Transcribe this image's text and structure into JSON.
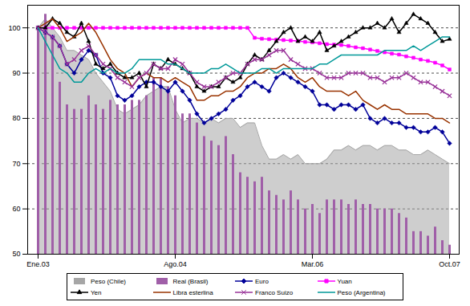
{
  "chart_data": {
    "type": "line",
    "categories": [
      "Ene.03",
      null,
      null,
      null,
      null,
      null,
      null,
      null,
      null,
      null,
      null,
      null,
      null,
      null,
      null,
      null,
      null,
      null,
      null,
      "Ago.04",
      null,
      null,
      null,
      null,
      null,
      null,
      null,
      null,
      null,
      null,
      null,
      null,
      null,
      null,
      null,
      null,
      null,
      null,
      "Mar.06",
      null,
      null,
      null,
      null,
      null,
      null,
      null,
      null,
      null,
      null,
      null,
      null,
      null,
      null,
      null,
      null,
      null,
      null,
      "Oct.07"
    ],
    "ylim": [
      50,
      105
    ],
    "yticks": [
      50,
      60,
      70,
      80,
      90,
      100
    ],
    "grid": true,
    "legend": "bottom",
    "series": [
      {
        "name": "Peso (Chile)",
        "type": "area",
        "color": "#a6a6a6",
        "values": [
          100,
          102,
          100,
          98,
          95,
          95,
          94,
          93,
          90,
          88,
          86,
          82,
          81,
          82,
          83,
          85,
          86,
          87,
          87,
          82,
          79,
          80,
          80,
          79,
          80,
          79,
          80,
          80,
          78,
          79,
          79,
          74,
          71,
          71,
          72,
          71,
          72,
          70,
          70,
          70,
          71,
          73,
          73,
          74,
          73,
          74,
          74,
          73,
          74,
          74,
          73,
          73,
          72,
          72,
          73,
          72,
          71,
          70
        ]
      },
      {
        "name": "Real (Brasil)",
        "type": "bar",
        "color": "#a05fa8",
        "values": [
          100,
          103,
          98,
          88,
          83,
          82,
          82,
          85,
          83,
          82,
          84,
          83,
          83,
          84,
          84,
          85,
          89,
          89,
          87,
          85,
          81,
          81,
          79,
          76,
          75,
          74,
          76,
          72,
          68,
          67,
          66,
          67,
          64,
          63,
          62,
          64,
          62,
          60,
          61,
          59,
          62,
          62,
          62,
          61,
          62,
          61,
          61,
          60,
          60,
          60,
          59,
          58,
          55,
          55,
          54,
          56,
          53,
          52
        ]
      },
      {
        "name": "Euro",
        "type": "line",
        "color": "#000099",
        "marker": "diamond",
        "values": [
          100,
          99,
          98,
          96,
          92,
          90,
          93,
          95,
          94,
          90,
          89,
          85,
          84,
          85,
          87,
          88,
          88,
          87,
          86,
          88,
          86,
          84,
          81,
          79,
          80,
          81,
          82,
          84,
          85,
          87,
          88,
          87,
          86,
          89,
          90,
          89,
          88,
          87,
          86,
          83,
          83,
          82,
          83,
          83,
          82,
          83,
          80,
          79,
          80,
          79,
          79,
          78,
          78,
          77,
          77,
          78,
          77,
          74.5
        ]
      },
      {
        "name": "Yuan",
        "type": "line",
        "color": "#ff00ff",
        "marker": "square",
        "values": [
          100,
          100,
          100,
          100,
          100,
          100,
          100,
          100,
          100,
          100,
          100,
          100,
          100,
          100,
          100,
          100,
          100,
          100,
          100,
          100,
          100,
          100,
          100,
          100,
          100,
          100,
          100,
          100,
          100,
          100,
          97.8,
          97.6,
          97.5,
          97.4,
          97.3,
          97.2,
          97.1,
          96.9,
          96.8,
          96.6,
          96.4,
          96.3,
          96.2,
          96.0,
          95.7,
          95.5,
          95.2,
          94.9,
          94.6,
          94.3,
          94.1,
          93.7,
          93.4,
          93.0,
          92.7,
          92.3,
          91.7,
          90.8
        ]
      },
      {
        "name": "Yen",
        "type": "line",
        "color": "#000000",
        "marker": "triangle",
        "values": [
          100,
          100,
          102,
          101,
          99,
          98,
          101,
          97,
          92,
          91,
          92,
          90,
          89,
          89,
          90,
          87,
          92,
          91,
          93,
          92,
          91,
          90,
          87,
          86,
          87,
          87,
          89,
          88,
          89,
          92,
          94,
          93,
          95,
          97,
          99,
          100,
          97,
          98,
          97,
          99,
          95,
          96,
          97,
          98,
          99,
          100,
          100,
          101,
          100,
          102,
          99,
          101,
          103,
          102,
          101,
          99,
          97,
          97.5
        ]
      },
      {
        "name": "Libra esterlina",
        "type": "line",
        "color": "#993300",
        "values": [
          100,
          101,
          102,
          100,
          97,
          98,
          99,
          101,
          99,
          96,
          93,
          91,
          90,
          87,
          89,
          90,
          89,
          89,
          88,
          89,
          88,
          87,
          84,
          84,
          85,
          85,
          86,
          86,
          87,
          89,
          90,
          90,
          91,
          91,
          92,
          91,
          89,
          88,
          89,
          87,
          86,
          86,
          86,
          85,
          86,
          84,
          83,
          82,
          83,
          82,
          82,
          81,
          81,
          81,
          81,
          80,
          80,
          79
        ]
      },
      {
        "name": "Franco Suizo",
        "type": "line",
        "color": "#993399",
        "marker": "x",
        "values": [
          100,
          99,
          98,
          96,
          92,
          93,
          95,
          96,
          94,
          92,
          91,
          89,
          88,
          87,
          89,
          90,
          92,
          91,
          91,
          93,
          92,
          90,
          88,
          87,
          87,
          88,
          89,
          90,
          90,
          92,
          93,
          93,
          94,
          95,
          95,
          93,
          92,
          91,
          91,
          90,
          89,
          89,
          89,
          90,
          90,
          90,
          89,
          89,
          88,
          89,
          89,
          90,
          89,
          88,
          88,
          87,
          86,
          85
        ]
      },
      {
        "name": "Peso (Argentina)",
        "type": "line",
        "color": "#009999",
        "values": [
          100,
          97,
          94,
          91,
          90,
          88,
          88,
          90,
          91,
          90,
          91,
          90,
          90,
          91,
          93,
          93,
          93,
          93,
          92,
          92,
          91,
          90,
          90,
          90,
          91,
          91,
          92,
          91,
          90,
          90,
          90,
          91,
          91,
          90,
          91,
          91,
          91,
          91,
          91,
          92,
          92,
          93,
          94,
          94,
          94,
          94,
          94,
          94,
          95,
          95,
          95,
          95,
          96,
          95,
          96,
          97,
          98,
          98
        ]
      }
    ]
  }
}
